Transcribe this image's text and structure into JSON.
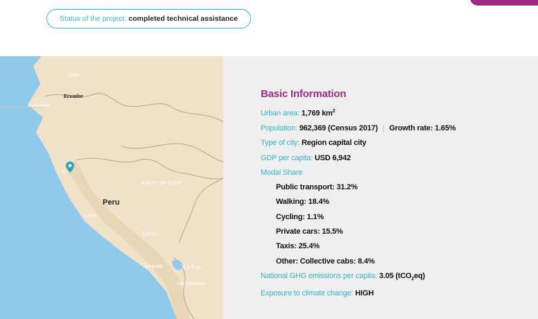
{
  "status": {
    "label": "Status of the project:",
    "value": "completed technical assistance"
  },
  "map": {
    "places": {
      "quito": "Quito",
      "ecuador": "Ecuador",
      "guayaquil": "Guayaquil",
      "talara": "Ta",
      "acre": "STATE OF ACRE",
      "peru": "Peru",
      "lima": "Lima",
      "cusco": "Cusco",
      "arequipa": "Arequipa",
      "lapaz": "La Paz",
      "cochabamba": "Cochabamba"
    },
    "colors": {
      "sea": "#8fc9ec",
      "land": "#efe2c8",
      "land_dark": "#e3d0ad",
      "border": "#b9a58a",
      "pin": "#2aa2c6"
    },
    "pin_icon": "location-pin-icon"
  },
  "info": {
    "heading": "Basic Information",
    "urban_area": {
      "label": "Urban area:",
      "value": "1,769 km",
      "sup": "2"
    },
    "population": {
      "label": "Population:",
      "value": "962,369 (Census 2017)",
      "sep": "|",
      "extra": "Growth rate: 1.65%"
    },
    "type_of_city": {
      "label": "Type of city:",
      "value": "Region capital city"
    },
    "gdp": {
      "label": "GDP per capita:",
      "value": "USD 6,942"
    },
    "modal_share": {
      "label": "Modal Share",
      "items": [
        "Public transport: 31.2%",
        "Walking: 18.4%",
        "Cycling: 1.1%",
        "Private cars: 15.5%",
        "Taxis: 25.4%",
        "Other: Collective cabs: 8.4%"
      ]
    },
    "ghg": {
      "label": "National GHG emissions per capita:",
      "value": "3.05 (tCO",
      "sub": "2",
      "tail": "eq)"
    },
    "exposure": {
      "label": "Exposure to climate change:",
      "value": "HIGH"
    }
  },
  "theme": {
    "accent_purple": "#9b2d86",
    "accent_teal": "#37b3c7",
    "panel_bg": "#efefef"
  }
}
